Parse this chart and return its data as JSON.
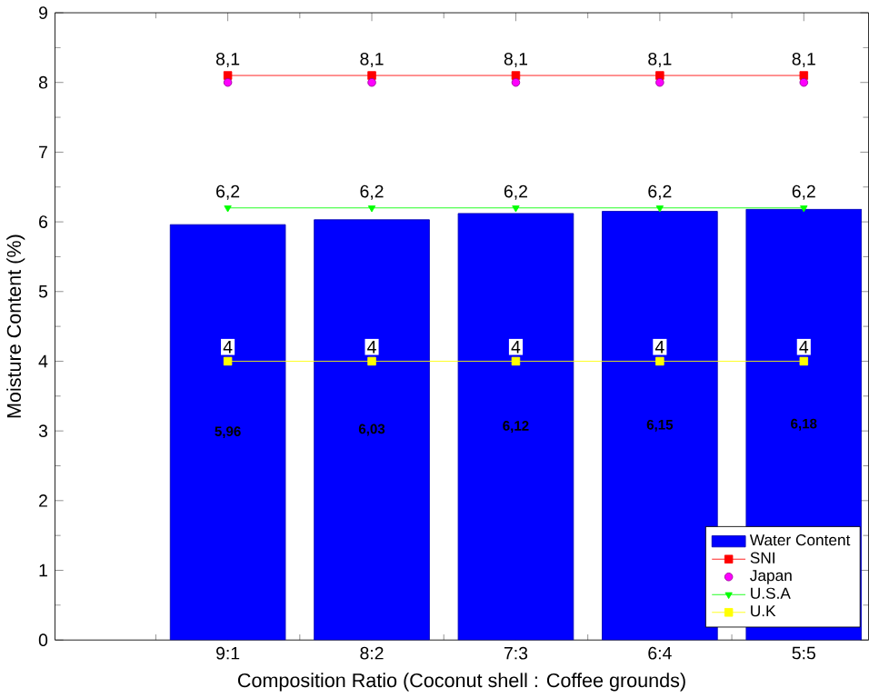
{
  "chart_data": {
    "type": "bar",
    "xlabel": "Composition Ratio (Coconut shell : Coffee grounds)",
    "ylabel": "Moisture Content (%)",
    "categories": [
      "9:1",
      "8:2",
      "7:3",
      "6:4",
      "5:5"
    ],
    "series": [
      {
        "name": "Water Content",
        "color": "#0000ff",
        "values": [
          5.96,
          6.03,
          6.12,
          6.15,
          6.18
        ],
        "value_labels": [
          "5,96",
          "6,03",
          "6,12",
          "6,15",
          "6,18"
        ]
      },
      {
        "name": "SNI",
        "type": "line",
        "color": "#ff0000",
        "marker": "square",
        "values": [
          8.1,
          8.1,
          8.1,
          8.1,
          8.1
        ],
        "value_labels": [
          "8,1",
          "8,1",
          "8,1",
          "8,1",
          "8,1"
        ]
      },
      {
        "name": "Japan",
        "type": "scatter",
        "color": "#ff00ff",
        "marker": "circle",
        "values": [
          8,
          8,
          8,
          8,
          8
        ]
      },
      {
        "name": "U.S.A",
        "type": "line",
        "color": "#00ff00",
        "marker": "triangle",
        "values": [
          6.2,
          6.2,
          6.2,
          6.2,
          6.2
        ],
        "value_labels": [
          "6,2",
          "6,2",
          "6,2",
          "6,2",
          "6,2"
        ]
      },
      {
        "name": "U.K",
        "type": "line",
        "color": "#ffff00",
        "marker": "square",
        "values": [
          4,
          4,
          4,
          4,
          4
        ],
        "value_labels": [
          "4",
          "4",
          "4",
          "4",
          "4"
        ]
      }
    ],
    "ylim": [
      0,
      9
    ],
    "yticks": [
      0,
      1,
      2,
      3,
      4,
      5,
      6,
      7,
      8,
      9
    ],
    "legend": "bottom right",
    "grid": false
  }
}
